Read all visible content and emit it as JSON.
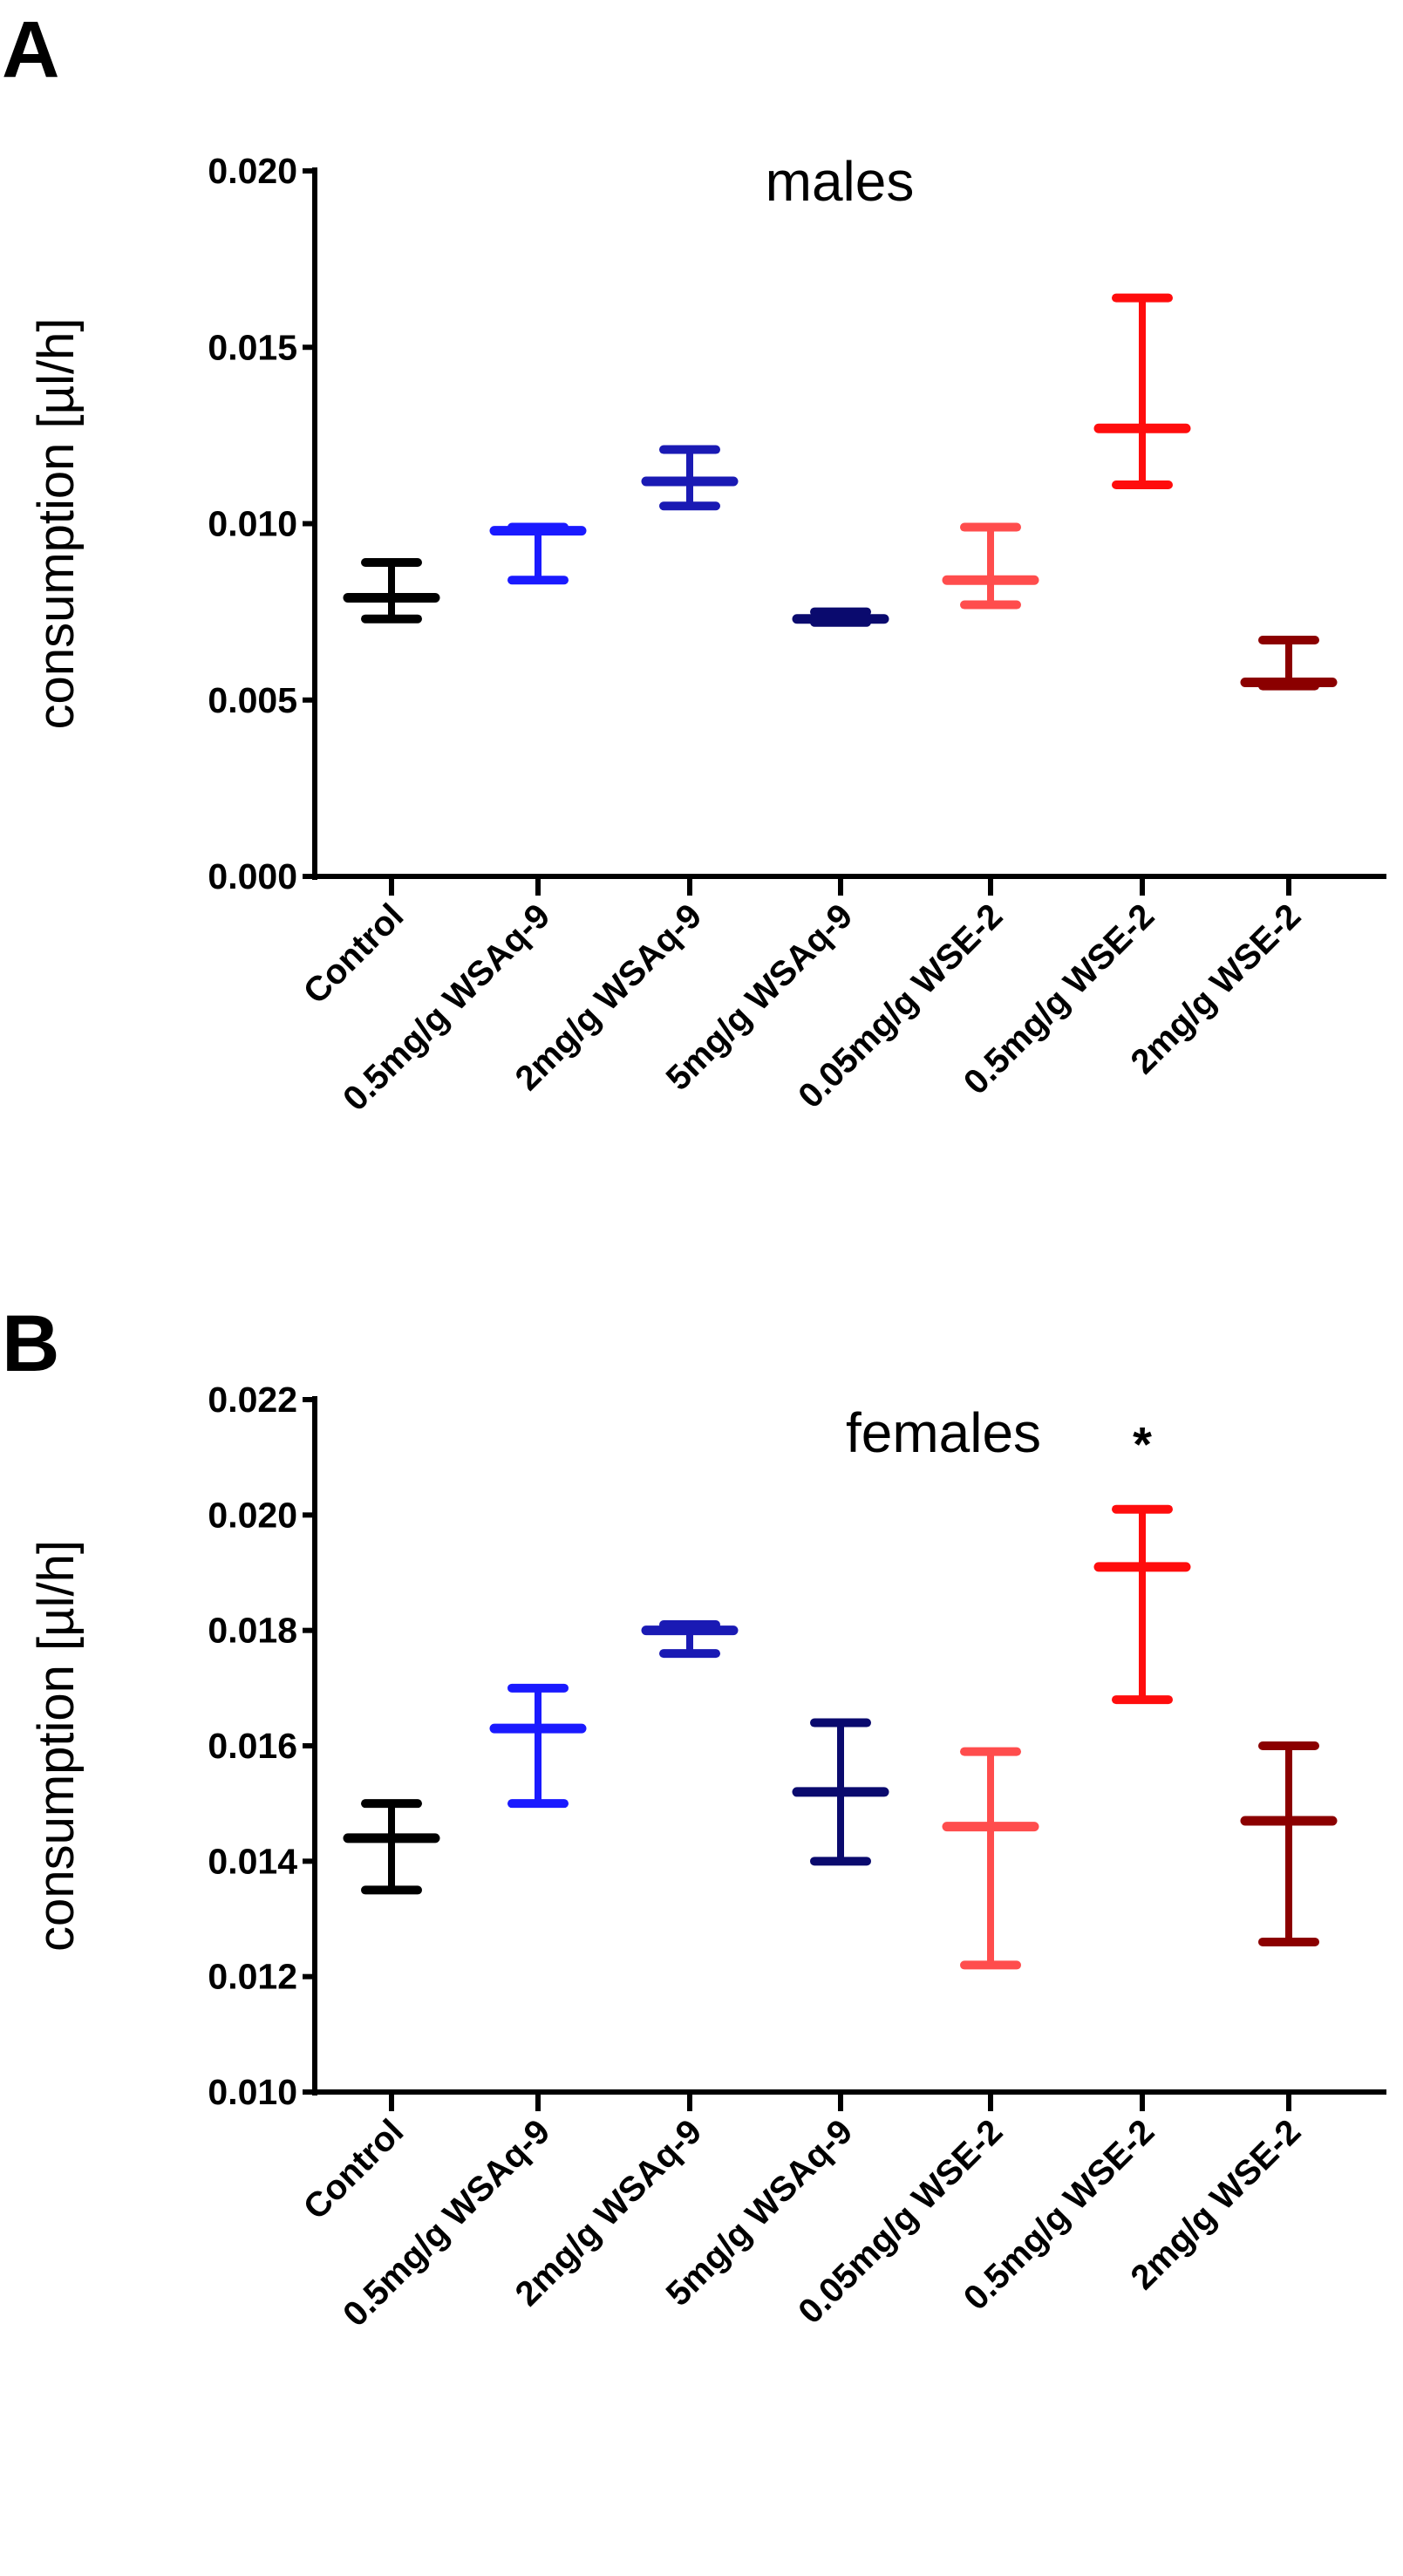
{
  "chart_data": [
    {
      "type": "errorbar",
      "panel_label": "A",
      "title": "males",
      "ylabel": "consumption [µl/h]",
      "xlabel": "",
      "ylim": [
        0,
        0.02
      ],
      "yticks": [
        "0.000",
        "0.005",
        "0.010",
        "0.015",
        "0.020"
      ],
      "ytick_values": [
        0,
        0.005,
        0.01,
        0.015,
        0.02
      ],
      "categories": [
        "Control",
        "0.5mg/g WSAq-9",
        "2mg/g WSAq-9",
        "5mg/g WSAq-9",
        "0.05mg/g WSE-2",
        "0.5mg/g WSE-2",
        "2mg/g WSE-2"
      ],
      "colors": [
        "#000000",
        "#1a1aff",
        "#1a1ab4",
        "#0a0a6e",
        "#ff4d4d",
        "#ff0d0d",
        "#8b0000"
      ],
      "mean": [
        0.0079,
        0.0098,
        0.0112,
        0.0073,
        0.0084,
        0.0127,
        0.0055
      ],
      "lower": [
        0.0073,
        0.0084,
        0.0105,
        0.0072,
        0.0077,
        0.0111,
        0.0054
      ],
      "upper": [
        0.0089,
        0.0099,
        0.0121,
        0.0075,
        0.0099,
        0.0164,
        0.0067
      ],
      "annotations": [
        "",
        "",
        "",
        "",
        "",
        "",
        ""
      ]
    },
    {
      "type": "errorbar",
      "panel_label": "B",
      "title": "females",
      "ylabel": "consumption [µl/h]",
      "xlabel": "",
      "ylim": [
        0.01,
        0.022
      ],
      "yticks": [
        "0.010",
        "0.012",
        "0.014",
        "0.016",
        "0.018",
        "0.020",
        "0.022"
      ],
      "ytick_values": [
        0.01,
        0.012,
        0.014,
        0.016,
        0.018,
        0.02,
        0.022
      ],
      "categories": [
        "Control",
        "0.5mg/g WSAq-9",
        "2mg/g WSAq-9",
        "5mg/g WSAq-9",
        "0.05mg/g WSE-2",
        "0.5mg/g WSE-2",
        "2mg/g WSE-2"
      ],
      "colors": [
        "#000000",
        "#1a1aff",
        "#1a1ab4",
        "#0a0a6e",
        "#ff4d4d",
        "#ff0d0d",
        "#8b0000"
      ],
      "mean": [
        0.0144,
        0.0163,
        0.018,
        0.0152,
        0.0146,
        0.0191,
        0.0147
      ],
      "lower": [
        0.0135,
        0.015,
        0.0176,
        0.014,
        0.0122,
        0.0168,
        0.0126
      ],
      "upper": [
        0.015,
        0.017,
        0.0181,
        0.0164,
        0.0159,
        0.0201,
        0.016
      ],
      "annotations": [
        "",
        "",
        "",
        "",
        "",
        "*",
        ""
      ]
    }
  ]
}
